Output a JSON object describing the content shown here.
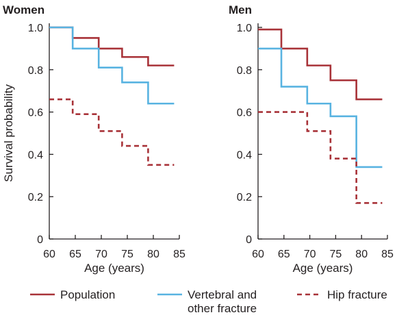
{
  "chart_data": [
    {
      "type": "line",
      "panel": "Women",
      "title": "Women",
      "xlabel": "Age (years)",
      "ylabel": "Survival probability",
      "xlim": [
        60,
        85
      ],
      "ylim": [
        0,
        1.0
      ],
      "x_ticks": [
        "60",
        "65",
        "70",
        "75",
        "80",
        "85"
      ],
      "y_ticks": [
        "0",
        "0.2",
        "0.4",
        "0.6",
        "0.8",
        "1.0"
      ],
      "step": true,
      "series": [
        {
          "name": "Population",
          "color": "#a83238",
          "style": "solid",
          "x": [
            60,
            64.5,
            69.5,
            74,
            79,
            84
          ],
          "y": [
            1.0,
            0.95,
            0.9,
            0.86,
            0.82,
            0.82
          ]
        },
        {
          "name": "Vertebral and other fracture",
          "color": "#58b3e1",
          "style": "solid",
          "x": [
            60,
            64.5,
            69.5,
            74,
            79,
            84
          ],
          "y": [
            1.0,
            0.9,
            0.81,
            0.74,
            0.64,
            0.64
          ]
        },
        {
          "name": "Hip fracture",
          "color": "#a83238",
          "style": "dashed",
          "x": [
            60,
            64.5,
            69.5,
            74,
            79,
            84
          ],
          "y": [
            0.66,
            0.59,
            0.51,
            0.44,
            0.35,
            0.35
          ]
        }
      ]
    },
    {
      "type": "line",
      "panel": "Men",
      "title": "Men",
      "xlabel": "Age (years)",
      "ylabel": "",
      "xlim": [
        60,
        85
      ],
      "ylim": [
        0,
        1.0
      ],
      "x_ticks": [
        "60",
        "65",
        "70",
        "75",
        "80",
        "85"
      ],
      "y_ticks": [
        "0",
        "0.2",
        "0.4",
        "0.6",
        "0.8",
        "1.0"
      ],
      "step": true,
      "series": [
        {
          "name": "Population",
          "color": "#a83238",
          "style": "solid",
          "x": [
            60,
            64.5,
            69.5,
            74,
            79,
            84
          ],
          "y": [
            0.99,
            0.9,
            0.82,
            0.75,
            0.66,
            0.66
          ]
        },
        {
          "name": "Vertebral and other fracture",
          "color": "#58b3e1",
          "style": "solid",
          "x": [
            60,
            64.5,
            69.5,
            74,
            79,
            84
          ],
          "y": [
            0.9,
            0.72,
            0.64,
            0.58,
            0.34,
            0.34
          ]
        },
        {
          "name": "Hip fracture",
          "color": "#a83238",
          "style": "dashed",
          "x": [
            60,
            64.5,
            69.5,
            74,
            79,
            84
          ],
          "y": [
            0.6,
            0.6,
            0.51,
            0.38,
            0.17,
            0.17
          ]
        }
      ]
    }
  ],
  "legend": {
    "items": [
      {
        "label_lines": [
          "Population"
        ],
        "color": "#a83238",
        "style": "solid"
      },
      {
        "label_lines": [
          "Vertebral and",
          "other fracture"
        ],
        "color": "#58b3e1",
        "style": "solid"
      },
      {
        "label_lines": [
          "Hip fracture"
        ],
        "color": "#a83238",
        "style": "dashed"
      }
    ]
  },
  "colors": {
    "population": "#a83238",
    "fracture": "#58b3e1",
    "hip": "#a83238",
    "axis": "#231f20"
  }
}
